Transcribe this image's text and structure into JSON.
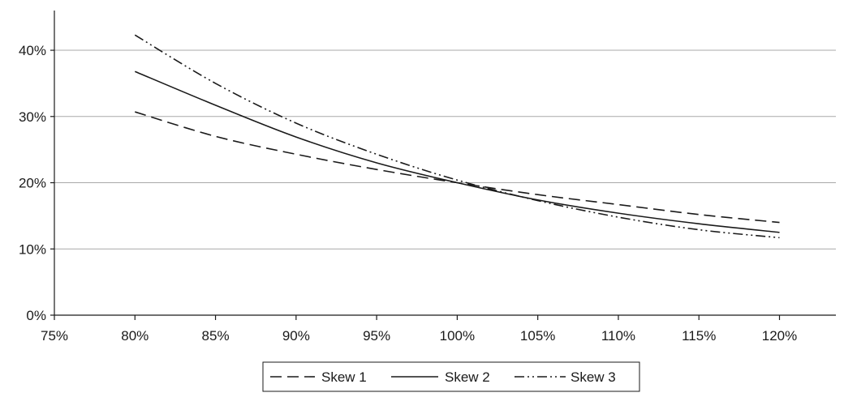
{
  "chart_data": {
    "type": "line",
    "title": "",
    "xlabel": "",
    "ylabel": "",
    "xlim": [
      75,
      123.5
    ],
    "ylim": [
      0,
      46
    ],
    "x_ticks": [
      75,
      80,
      85,
      90,
      95,
      100,
      105,
      110,
      115,
      120
    ],
    "x_tick_labels": [
      "75%",
      "80%",
      "85%",
      "90%",
      "95%",
      "100%",
      "105%",
      "110%",
      "115%",
      "120%"
    ],
    "y_ticks": [
      0,
      10,
      20,
      30,
      40
    ],
    "y_tick_labels": [
      "0%",
      "10%",
      "20%",
      "30%",
      "40%"
    ],
    "grid": "horizontal",
    "legend_position": "bottom-center",
    "x": [
      80,
      85,
      90,
      95,
      100,
      105,
      110,
      115,
      120
    ],
    "series": [
      {
        "name": "Skew 1",
        "dash": "dashed",
        "values": [
          30.7,
          27.0,
          24.3,
          22.0,
          20.0,
          18.2,
          16.7,
          15.2,
          14.0
        ]
      },
      {
        "name": "Skew 2",
        "dash": "solid",
        "values": [
          36.8,
          31.7,
          26.9,
          23.0,
          20.0,
          17.4,
          15.4,
          13.8,
          12.5
        ]
      },
      {
        "name": "Skew 3",
        "dash": "dash-dot-dot",
        "values": [
          42.3,
          35.0,
          29.0,
          24.3,
          20.4,
          17.3,
          14.8,
          12.9,
          11.7
        ]
      }
    ]
  }
}
